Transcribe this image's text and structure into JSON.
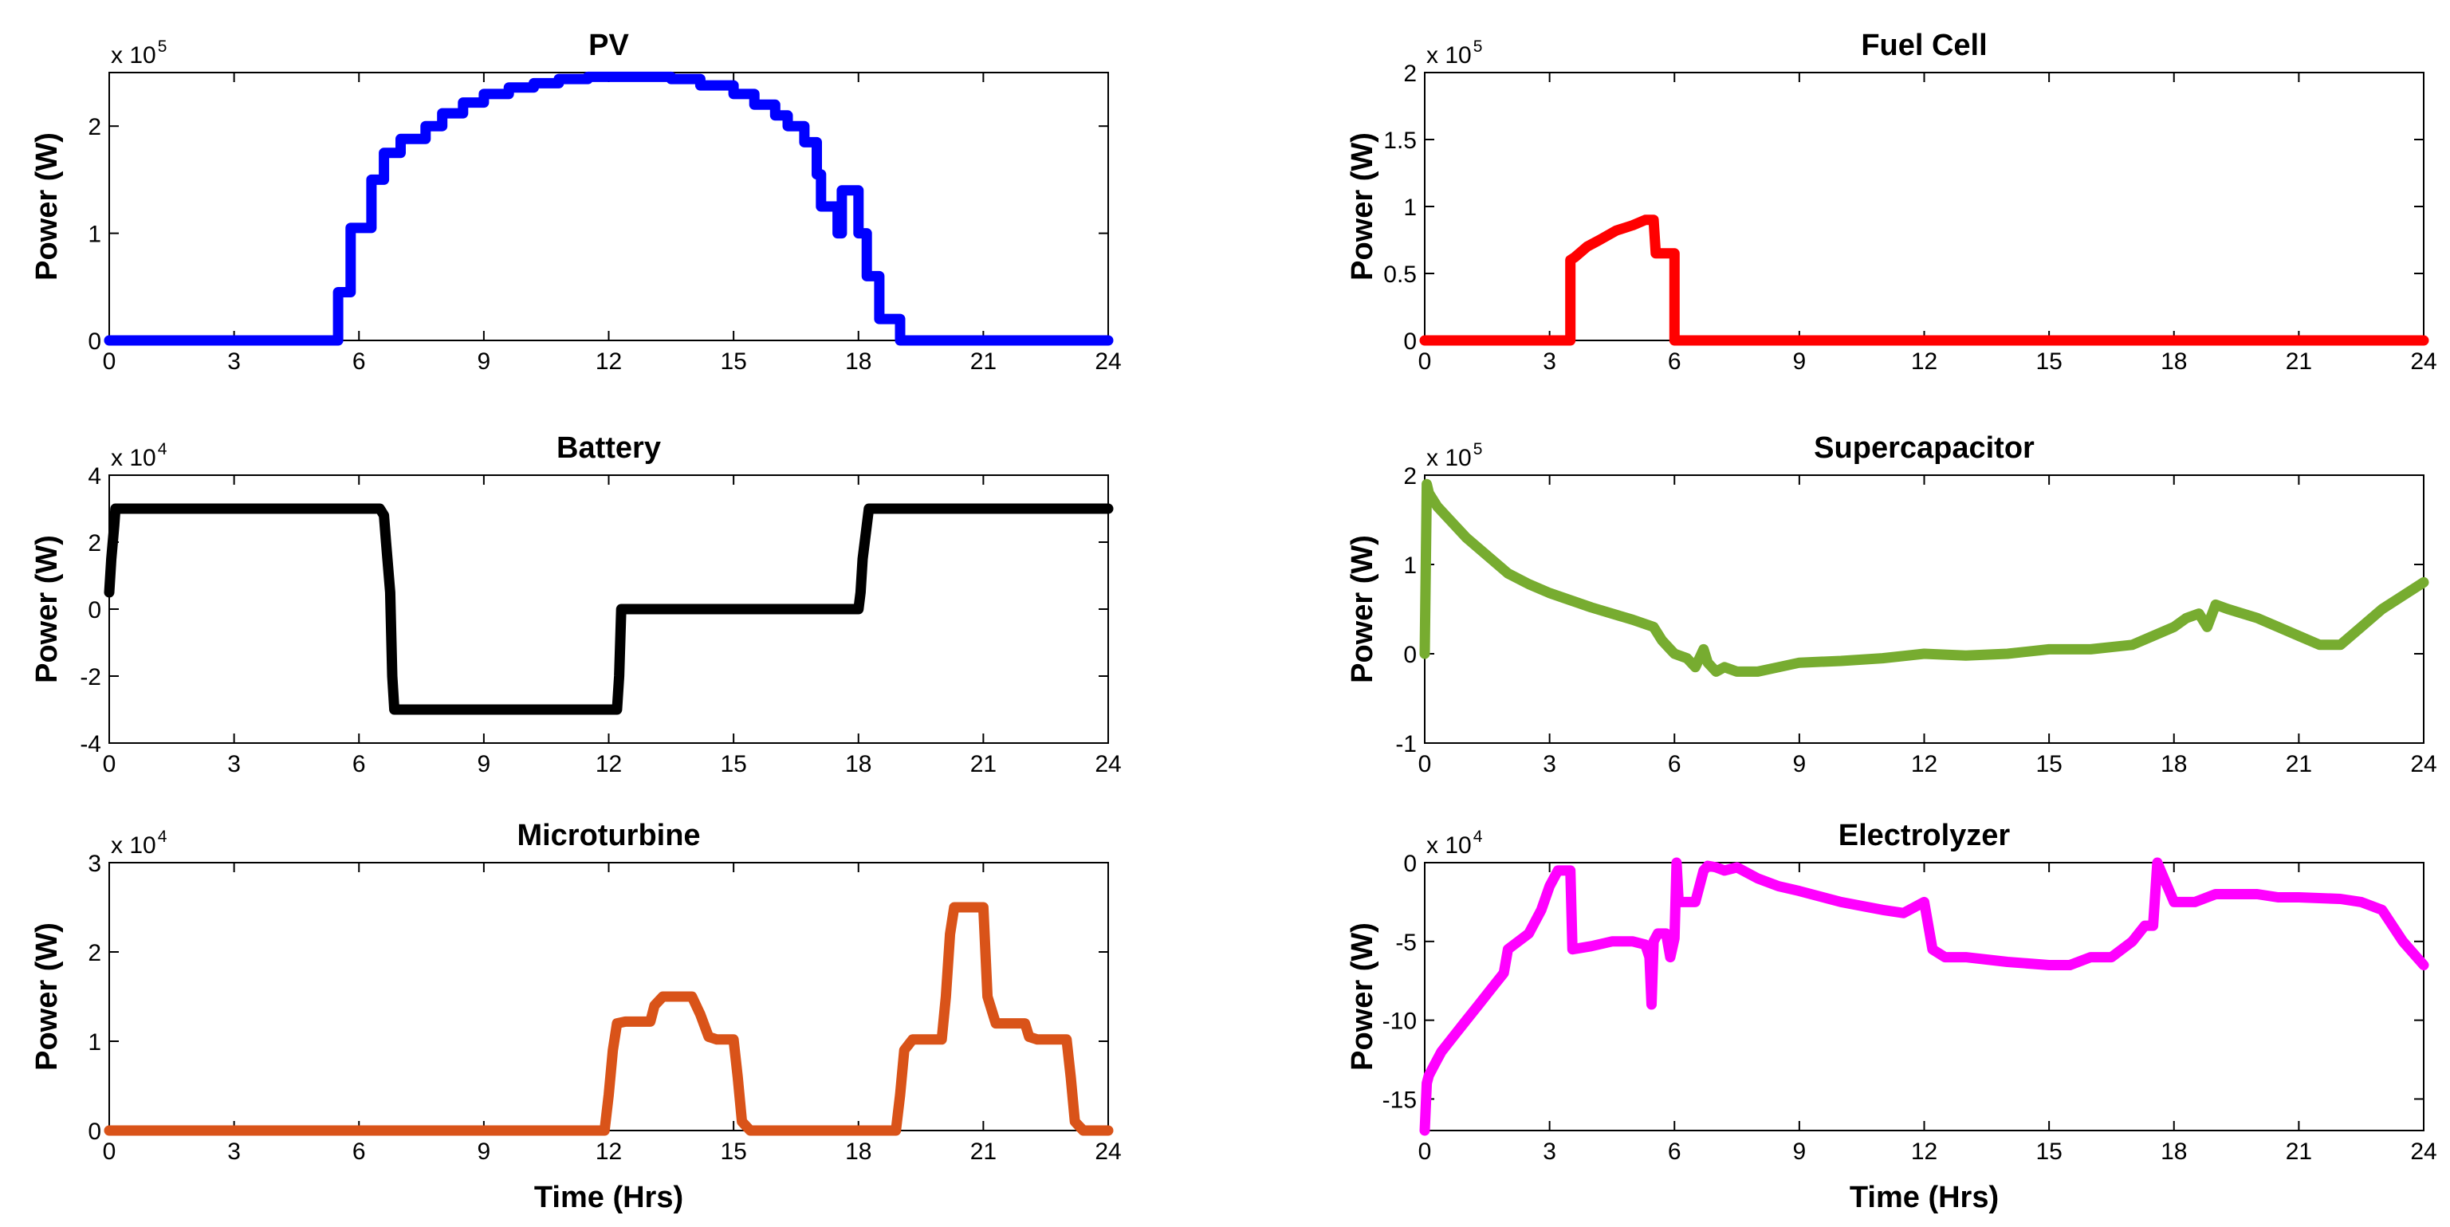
{
  "figure": {
    "xlabel": "Time (Hrs)"
  },
  "chart_data": [
    {
      "type": "line",
      "id": "pv",
      "title": "PV",
      "ylabel": "Power (W)",
      "xlabel": "",
      "color": "#0000ff",
      "xlim": [
        0,
        24
      ],
      "ylim": [
        0,
        2.5
      ],
      "exponent_base": "x 10",
      "exponent_power": "5",
      "xticks": [
        0,
        3,
        6,
        9,
        12,
        15,
        18,
        21,
        24
      ],
      "xtick_labels": [
        "0",
        "3",
        "6",
        "9",
        "12",
        "15",
        "18",
        "21",
        "24"
      ],
      "yticks": [
        0,
        1,
        2
      ],
      "ytick_labels": [
        "0",
        "1",
        "2"
      ],
      "x": [
        0,
        5.5,
        5.5,
        5.8,
        5.8,
        6.3,
        6.3,
        6.6,
        6.6,
        7.0,
        7.0,
        7.6,
        7.6,
        8.0,
        8.0,
        8.5,
        8.5,
        9.0,
        9.0,
        9.6,
        9.6,
        10.2,
        10.2,
        10.8,
        10.8,
        11.5,
        11.5,
        13.5,
        13.5,
        14.2,
        14.2,
        15.0,
        15.0,
        15.5,
        15.5,
        16.0,
        16.0,
        16.3,
        16.3,
        16.7,
        16.7,
        17.0,
        17.0,
        17.1,
        17.1,
        17.5,
        17.5,
        17.6,
        17.6,
        18.0,
        18.0,
        18.2,
        18.2,
        18.5,
        18.5,
        19.0,
        19.0,
        24
      ],
      "y": [
        0,
        0,
        0.45,
        0.45,
        1.05,
        1.05,
        1.5,
        1.5,
        1.75,
        1.75,
        1.88,
        1.88,
        2.0,
        2.0,
        2.12,
        2.12,
        2.22,
        2.22,
        2.3,
        2.3,
        2.36,
        2.36,
        2.4,
        2.4,
        2.44,
        2.44,
        2.46,
        2.46,
        2.44,
        2.44,
        2.38,
        2.38,
        2.3,
        2.3,
        2.2,
        2.2,
        2.1,
        2.1,
        2.0,
        2.0,
        1.85,
        1.85,
        1.55,
        1.55,
        1.25,
        1.25,
        1.0,
        1.0,
        1.4,
        1.4,
        1.0,
        1.0,
        0.6,
        0.6,
        0.2,
        0.2,
        0,
        0
      ]
    },
    {
      "type": "line",
      "id": "fuel-cell",
      "title": "Fuel Cell",
      "ylabel": "Power (W)",
      "xlabel": "",
      "color": "#ff0000",
      "xlim": [
        0,
        24
      ],
      "ylim": [
        0,
        2
      ],
      "exponent_base": "x 10",
      "exponent_power": "5",
      "xticks": [
        0,
        3,
        6,
        9,
        12,
        15,
        18,
        21,
        24
      ],
      "xtick_labels": [
        "0",
        "3",
        "6",
        "9",
        "12",
        "15",
        "18",
        "21",
        "24"
      ],
      "yticks": [
        0,
        0.5,
        1,
        1.5,
        2
      ],
      "ytick_labels": [
        "0",
        "0.5",
        "1",
        "1.5",
        "2"
      ],
      "x": [
        0,
        3.5,
        3.5,
        3.6,
        3.9,
        4.2,
        4.6,
        5.0,
        5.3,
        5.5,
        5.55,
        5.6,
        6.0,
        6.0,
        24,
        24
      ],
      "y": [
        0,
        0,
        0.6,
        0.62,
        0.7,
        0.75,
        0.82,
        0.86,
        0.9,
        0.9,
        0.65,
        0.65,
        0.65,
        0,
        0,
        0
      ]
    },
    {
      "type": "line",
      "id": "battery",
      "title": "Battery",
      "ylabel": "Power (W)",
      "xlabel": "",
      "color": "#000000",
      "xlim": [
        0,
        24
      ],
      "ylim": [
        -4,
        4
      ],
      "exponent_base": "x 10",
      "exponent_power": "4",
      "xticks": [
        0,
        3,
        6,
        9,
        12,
        15,
        18,
        21,
        24
      ],
      "xtick_labels": [
        "0",
        "3",
        "6",
        "9",
        "12",
        "15",
        "18",
        "21",
        "24"
      ],
      "yticks": [
        -4,
        -2,
        0,
        2,
        4
      ],
      "ytick_labels": [
        "-4",
        "-2",
        "0",
        "2",
        "4"
      ],
      "x": [
        0,
        0.05,
        0.12,
        0.15,
        0.25,
        6.5,
        6.6,
        6.65,
        6.75,
        6.8,
        6.85,
        12.2,
        12.25,
        12.3,
        12.35,
        18.0,
        18.05,
        18.1,
        18.2,
        18.25,
        24
      ],
      "y": [
        0.5,
        1.5,
        2.5,
        3,
        3,
        3,
        2.8,
        2,
        0.5,
        -2,
        -3,
        -3,
        -2,
        0,
        0,
        0,
        0.5,
        1.5,
        2.5,
        3,
        3
      ]
    },
    {
      "type": "line",
      "id": "supercapacitor",
      "title": "Supercapacitor",
      "ylabel": "Power (W)",
      "xlabel": "",
      "color": "#77ac30",
      "xlim": [
        0,
        24
      ],
      "ylim": [
        -1,
        2
      ],
      "exponent_base": "x 10",
      "exponent_power": "5",
      "xticks": [
        0,
        3,
        6,
        9,
        12,
        15,
        18,
        21,
        24
      ],
      "xtick_labels": [
        "0",
        "3",
        "6",
        "9",
        "12",
        "15",
        "18",
        "21",
        "24"
      ],
      "yticks": [
        -1,
        0,
        1,
        2
      ],
      "ytick_labels": [
        "-1",
        "0",
        "1",
        "2"
      ],
      "x": [
        0,
        0.05,
        0.1,
        0.3,
        0.6,
        1.0,
        1.5,
        2.0,
        2.5,
        3.0,
        3.5,
        4.0,
        4.5,
        5.0,
        5.5,
        5.7,
        5.9,
        6.0,
        6.3,
        6.5,
        6.7,
        6.8,
        7.0,
        7.2,
        7.5,
        8.0,
        8.5,
        9.0,
        10.0,
        11.0,
        12.0,
        13.0,
        14.0,
        15.0,
        16.0,
        17.0,
        17.5,
        18.0,
        18.3,
        18.6,
        18.8,
        19.0,
        19.3,
        20.0,
        20.5,
        21.0,
        21.5,
        22.0,
        22.5,
        23.0,
        23.5,
        24.0
      ],
      "y": [
        0,
        1.9,
        1.8,
        1.65,
        1.5,
        1.3,
        1.1,
        0.9,
        0.78,
        0.68,
        0.6,
        0.52,
        0.45,
        0.38,
        0.3,
        0.15,
        0.05,
        0,
        -0.05,
        -0.15,
        0.05,
        -0.1,
        -0.2,
        -0.15,
        -0.2,
        -0.2,
        -0.15,
        -0.1,
        -0.08,
        -0.05,
        0,
        -0.02,
        0,
        0.05,
        0.05,
        0.1,
        0.2,
        0.3,
        0.4,
        0.45,
        0.3,
        0.55,
        0.5,
        0.4,
        0.3,
        0.2,
        0.1,
        0.1,
        0.3,
        0.5,
        0.65,
        0.8
      ]
    },
    {
      "type": "line",
      "id": "microturbine",
      "title": "Microturbine",
      "ylabel": "Power (W)",
      "xlabel": "Time (Hrs)",
      "color": "#d95319",
      "xlim": [
        0,
        24
      ],
      "ylim": [
        0,
        3
      ],
      "exponent_base": "x 10",
      "exponent_power": "4",
      "xticks": [
        0,
        3,
        6,
        9,
        12,
        15,
        18,
        21,
        24
      ],
      "xtick_labels": [
        "0",
        "3",
        "6",
        "9",
        "12",
        "15",
        "18",
        "21",
        "24"
      ],
      "yticks": [
        0,
        1,
        2,
        3
      ],
      "ytick_labels": [
        "0",
        "1",
        "2",
        "3"
      ],
      "x": [
        0,
        11.9,
        12.0,
        12.1,
        12.2,
        12.4,
        12.8,
        13.0,
        13.1,
        13.3,
        14.0,
        14.2,
        14.4,
        14.6,
        15.0,
        15.1,
        15.2,
        15.4,
        18.9,
        19.0,
        19.1,
        19.3,
        20.0,
        20.1,
        20.2,
        20.3,
        20.4,
        21.0,
        21.1,
        21.3,
        22.0,
        22.1,
        22.3,
        23.0,
        23.1,
        23.2,
        23.4,
        24
      ],
      "y": [
        0,
        0,
        0.4,
        0.9,
        1.2,
        1.22,
        1.22,
        1.22,
        1.4,
        1.5,
        1.5,
        1.3,
        1.05,
        1.02,
        1.02,
        0.6,
        0.1,
        0,
        0,
        0.4,
        0.9,
        1.02,
        1.02,
        1.5,
        2.2,
        2.5,
        2.5,
        2.5,
        1.5,
        1.2,
        1.2,
        1.05,
        1.02,
        1.02,
        0.6,
        0.1,
        0,
        0
      ]
    },
    {
      "type": "line",
      "id": "electrolyzer",
      "title": "Electrolyzer",
      "ylabel": "Power (W)",
      "xlabel": "Time (Hrs)",
      "color": "#ff00ff",
      "xlim": [
        0,
        24
      ],
      "ylim": [
        -17,
        0
      ],
      "exponent_base": "x 10",
      "exponent_power": "4",
      "xticks": [
        0,
        3,
        6,
        9,
        12,
        15,
        18,
        21,
        24
      ],
      "xtick_labels": [
        "0",
        "3",
        "6",
        "9",
        "12",
        "15",
        "18",
        "21",
        "24"
      ],
      "yticks": [
        -15,
        -10,
        -5,
        0
      ],
      "ytick_labels": [
        "-15",
        "-10",
        "-5",
        "0"
      ],
      "x": [
        0,
        0.05,
        0.1,
        0.2,
        0.4,
        0.7,
        1.0,
        1.3,
        1.6,
        1.9,
        2.0,
        2.5,
        2.8,
        3.0,
        3.2,
        3.5,
        3.55,
        4.0,
        4.5,
        5.0,
        5.3,
        5.4,
        5.45,
        5.5,
        5.6,
        5.8,
        5.9,
        6.0,
        6.05,
        6.1,
        6.5,
        6.7,
        6.8,
        7.0,
        7.2,
        7.5,
        8.0,
        8.5,
        9.0,
        10.0,
        11.0,
        11.5,
        12.0,
        12.2,
        12.5,
        13.0,
        14.0,
        15.0,
        15.5,
        16.0,
        16.5,
        17.0,
        17.3,
        17.5,
        17.6,
        18.0,
        18.5,
        19.0,
        19.5,
        20.0,
        20.5,
        21.0,
        22.0,
        22.5,
        23.0,
        23.5,
        24.0
      ],
      "y": [
        -17,
        -14,
        -13.5,
        -13,
        -12,
        -11,
        -10,
        -9,
        -8,
        -7,
        -5.5,
        -4.5,
        -3,
        -1.5,
        -0.5,
        -0.5,
        -5.5,
        -5.3,
        -5,
        -5,
        -5.2,
        -6,
        -9,
        -5,
        -4.5,
        -4.5,
        -6,
        -4.8,
        0,
        -2.5,
        -2.5,
        -0.5,
        -0.2,
        -0.3,
        -0.5,
        -0.3,
        -1,
        -1.5,
        -1.8,
        -2.5,
        -3,
        -3.2,
        -2.5,
        -5.5,
        -6,
        -6,
        -6.3,
        -6.5,
        -6.5,
        -6,
        -6,
        -5,
        -4,
        -4,
        0,
        -2.5,
        -2.5,
        -2,
        -2,
        -2,
        -2.2,
        -2.2,
        -2.3,
        -2.5,
        -3,
        -5,
        -6.5
      ]
    }
  ]
}
